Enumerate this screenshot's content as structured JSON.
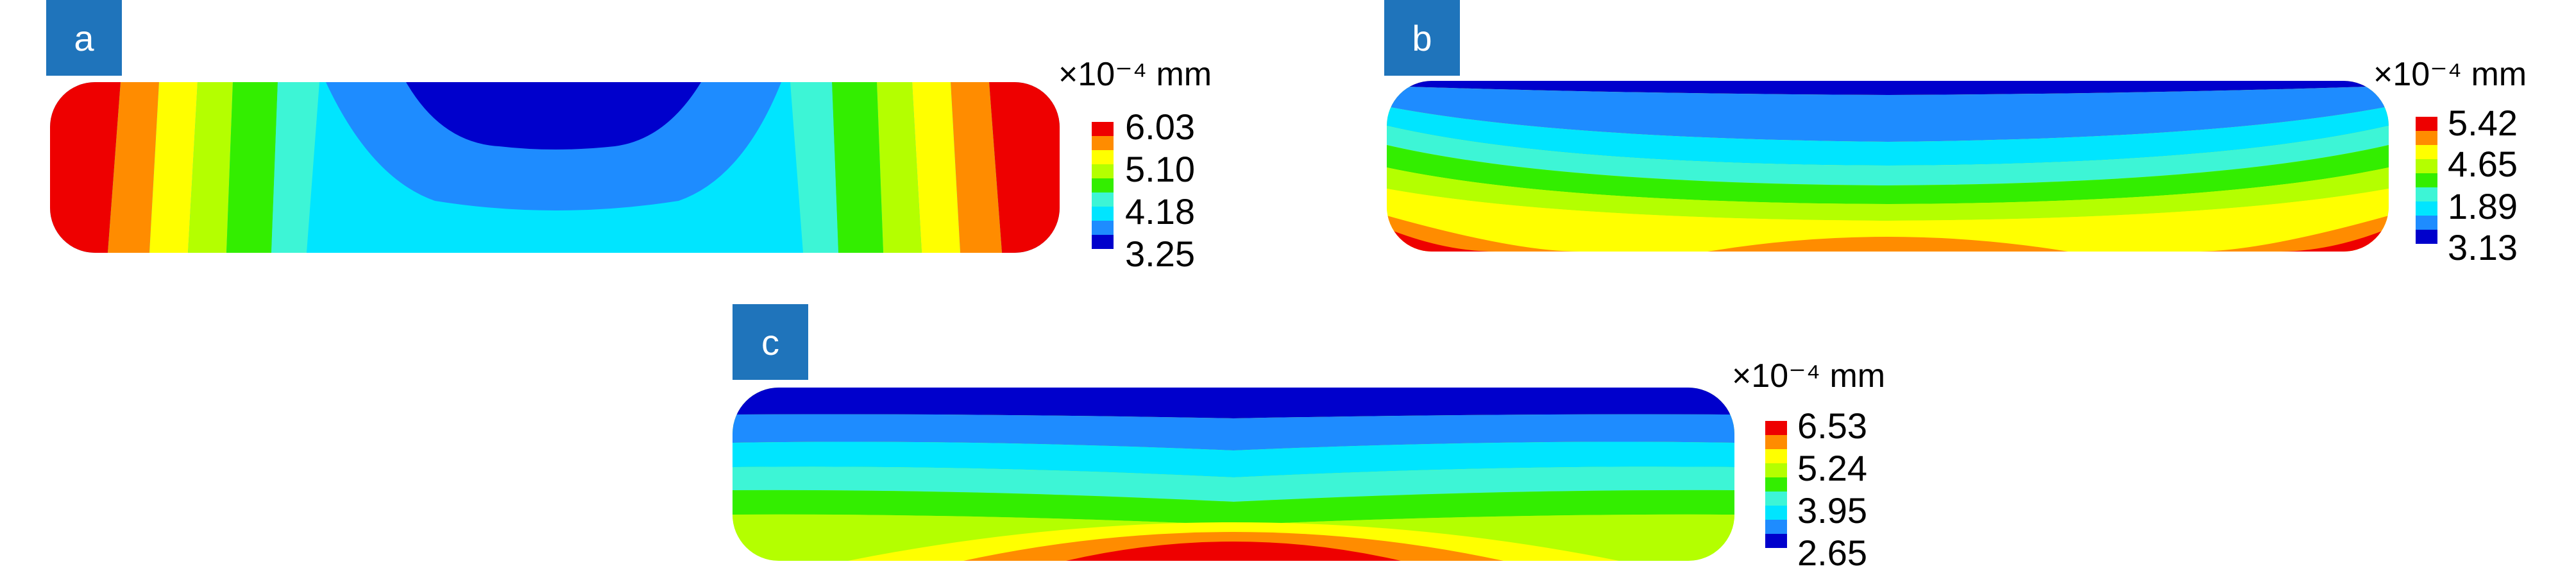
{
  "palette": [
    "#0000cc",
    "#1e8cff",
    "#00e5ff",
    "#3df5d6",
    "#33ee00",
    "#b4ff00",
    "#ffff00",
    "#ff8c00",
    "#ee0000"
  ],
  "panels": [
    {
      "label": "a",
      "unit": "×10⁻⁴ mm",
      "ticks": [
        "6.03",
        "5.10",
        "4.18",
        "3.25"
      ]
    },
    {
      "label": "b",
      "unit": "×10⁻⁴ mm",
      "ticks": [
        "5.42",
        "4.65",
        "1.89",
        "3.13"
      ]
    },
    {
      "label": "c",
      "unit": "×10⁻⁴ mm",
      "ticks": [
        "6.53",
        "5.24",
        "3.95",
        "2.65"
      ]
    }
  ]
}
